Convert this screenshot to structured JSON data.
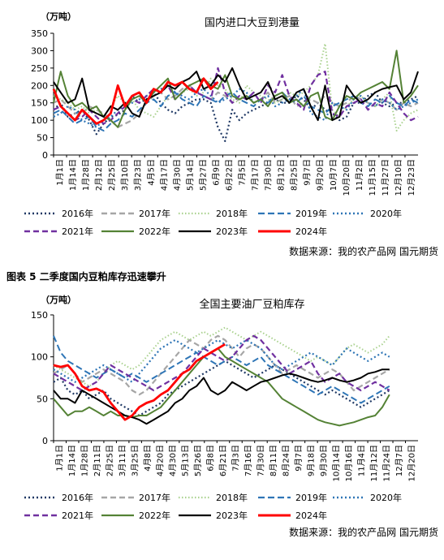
{
  "section_title": "图表 5 二季度国内豆粕库存迅速攀升",
  "legend_colors": {
    "2016年": "#1f3864",
    "2017年": "#a6a6a6",
    "2018年": "#a9d18e",
    "2019年": "#2e75b6",
    "2020年": "#2e75b6",
    "2021年": "#7030a0",
    "2022年": "#548235",
    "2023年": "#000000",
    "2024年": "#ff0000"
  },
  "chart_data": [
    {
      "type": "line",
      "title": "国内进口大豆到港量",
      "unit": "（万吨）",
      "source": "数据来源：我的农产品网 国元期货",
      "ylim": [
        0,
        350
      ],
      "yticks": [
        0,
        50,
        100,
        150,
        200,
        250,
        300,
        350
      ],
      "x_labels": [
        "1月1日",
        "1月14日",
        "1月28日",
        "2月12日",
        "2月25日",
        "3月10日",
        "3月23日",
        "4月5日",
        "4月17日",
        "4月30日",
        "5月14日",
        "5月27日",
        "6月9日",
        "6月22日",
        "7月5日",
        "7月17日",
        "7月30日",
        "8月12日",
        "8月25日",
        "9月7日",
        "9月20日",
        "10月7日",
        "10月20日",
        "11月2日",
        "11月15日",
        "11月27日",
        "12月10日",
        "12月23日"
      ],
      "series": [
        {
          "name": "2016年",
          "values": [
            130,
            150,
            110,
            120,
            130,
            100,
            60,
            90,
            110,
            115,
            130,
            170,
            150,
            160,
            180,
            150,
            130,
            120,
            140,
            150,
            160,
            160,
            150,
            80,
            40,
            130,
            100,
            120,
            130,
            140,
            150,
            160,
            150,
            150,
            170,
            160,
            130,
            150,
            130,
            120,
            100,
            110,
            150,
            150,
            170,
            180,
            150,
            140,
            150,
            150,
            160,
            170
          ]
        },
        {
          "name": "2017年",
          "values": [
            150,
            160,
            140,
            120,
            120,
            140,
            130,
            120,
            100,
            80,
            90,
            100,
            120,
            150,
            170,
            180,
            160,
            170,
            190,
            200,
            180,
            170,
            160,
            180,
            170,
            150,
            160,
            170,
            150,
            160,
            180,
            150,
            160,
            170,
            140,
            150,
            160,
            150,
            170,
            150,
            140,
            150,
            170,
            160,
            150,
            140,
            160,
            150,
            130,
            150,
            140,
            150
          ]
        },
        {
          "name": "2018年",
          "values": [
            170,
            160,
            150,
            130,
            140,
            120,
            130,
            110,
            140,
            170,
            150,
            160,
            130,
            120,
            110,
            140,
            170,
            160,
            180,
            190,
            170,
            180,
            220,
            200,
            190,
            160,
            150,
            200,
            180,
            170,
            160,
            150,
            160,
            180,
            170,
            180,
            200,
            230,
            320,
            130,
            110,
            140,
            160,
            170,
            150,
            140,
            160,
            180,
            70,
            100,
            120,
            130
          ]
        },
        {
          "name": "2019年",
          "values": [
            120,
            130,
            110,
            90,
            100,
            110,
            80,
            70,
            90,
            100,
            120,
            110,
            130,
            150,
            160,
            140,
            170,
            180,
            160,
            150,
            140,
            170,
            160,
            150,
            170,
            180,
            160,
            150,
            140,
            160,
            150,
            170,
            180,
            160,
            150,
            170,
            140,
            130,
            120,
            140,
            150,
            160,
            170,
            150,
            140,
            160,
            150,
            170,
            150,
            140,
            160,
            150
          ]
        },
        {
          "name": "2020年",
          "values": [
            110,
            120,
            140,
            130,
            100,
            90,
            80,
            100,
            110,
            130,
            140,
            150,
            160,
            170,
            180,
            190,
            200,
            180,
            170,
            160,
            180,
            190,
            170,
            150,
            160,
            170,
            190,
            180,
            150,
            160,
            170,
            140,
            150,
            160,
            170,
            190,
            120,
            110,
            100,
            150,
            140,
            130,
            160,
            170,
            150,
            140,
            160,
            150,
            130,
            140,
            150,
            160
          ]
        },
        {
          "name": "2021年",
          "values": [
            130,
            140,
            120,
            100,
            110,
            130,
            110,
            90,
            100,
            120,
            140,
            160,
            150,
            170,
            190,
            180,
            200,
            160,
            180,
            200,
            180,
            170,
            160,
            250,
            180,
            150,
            170,
            160,
            180,
            150,
            200,
            180,
            230,
            170,
            150,
            130,
            200,
            230,
            240,
            120,
            110,
            140,
            150,
            160,
            130,
            150,
            140,
            180,
            150,
            120,
            100,
            110
          ]
        },
        {
          "name": "2022年",
          "values": [
            150,
            240,
            170,
            140,
            150,
            130,
            140,
            110,
            100,
            80,
            130,
            160,
            170,
            150,
            180,
            200,
            220,
            160,
            180,
            200,
            210,
            220,
            200,
            190,
            230,
            170,
            160,
            170,
            150,
            160,
            140,
            170,
            180,
            150,
            160,
            140,
            170,
            180,
            110,
            100,
            140,
            170,
            160,
            180,
            190,
            200,
            210,
            190,
            300,
            150,
            170,
            200
          ]
        },
        {
          "name": "2023年",
          "values": [
            210,
            180,
            150,
            160,
            220,
            130,
            120,
            110,
            140,
            130,
            150,
            120,
            110,
            160,
            170,
            180,
            200,
            190,
            210,
            220,
            240,
            190,
            200,
            230,
            210,
            250,
            200,
            160,
            170,
            180,
            210,
            160,
            170,
            150,
            180,
            190,
            140,
            100,
            200,
            100,
            110,
            200,
            170,
            150,
            160,
            180,
            190,
            195,
            200,
            160,
            180,
            240
          ]
        },
        {
          "name": "2024年",
          "values": [
            190,
            140,
            120,
            100,
            130,
            110,
            90,
            100,
            120,
            200,
            140,
            170,
            180,
            150,
            190,
            180,
            210,
            200,
            210,
            190,
            180,
            220,
            190,
            210
          ]
        }
      ]
    },
    {
      "type": "line",
      "title": "全国主要油厂豆粕库存",
      "unit": "（万吨）",
      "source": "数据来源：我的农产品网 国元期货",
      "ylim": [
        0,
        150
      ],
      "yticks": [
        0,
        50,
        100,
        150
      ],
      "x_labels": [
        "1月1日",
        "1月14日",
        "1月28日",
        "2月11日",
        "2月25日",
        "3月11日",
        "3月25日",
        "4月8日",
        "4月20日",
        "4月30日",
        "5月13日",
        "5月26日",
        "6月8日",
        "6月21日",
        "7月3日",
        "7月16日",
        "7月30日",
        "8月11日",
        "8月24日",
        "9月7日",
        "9月18日",
        "9月30日",
        "10月14日",
        "10月16日",
        "11月4日",
        "11月12日",
        "11月24日",
        "12月7日",
        "12月20日"
      ],
      "series": [
        {
          "name": "2016年",
          "values": [
            70,
            75,
            60,
            55,
            60,
            50,
            55,
            60,
            50,
            45,
            40,
            35,
            30,
            35,
            40,
            45,
            55,
            60,
            65,
            70,
            75,
            80,
            85,
            90,
            95,
            90,
            85,
            80,
            75,
            80,
            85,
            90,
            85,
            80,
            75,
            70,
            65,
            60,
            55,
            60,
            55,
            50,
            45,
            40,
            45,
            50,
            55,
            60
          ]
        },
        {
          "name": "2017年",
          "values": [
            80,
            85,
            90,
            80,
            70,
            75,
            80,
            85,
            80,
            75,
            70,
            60,
            55,
            60,
            70,
            80,
            90,
            100,
            110,
            120,
            115,
            110,
            120,
            125,
            120,
            110,
            100,
            110,
            115,
            110,
            100,
            90,
            80,
            85,
            90,
            85,
            80,
            75,
            80,
            85,
            80,
            70,
            60,
            65,
            70,
            75,
            80,
            85
          ]
        },
        {
          "name": "2018年",
          "values": [
            90,
            85,
            80,
            75,
            70,
            65,
            70,
            80,
            90,
            95,
            90,
            85,
            90,
            100,
            110,
            120,
            125,
            130,
            125,
            120,
            125,
            130,
            125,
            130,
            135,
            130,
            125,
            120,
            125,
            130,
            125,
            120,
            115,
            110,
            105,
            100,
            95,
            100,
            95,
            90,
            100,
            110,
            115,
            110,
            105,
            110,
            115,
            125
          ]
        },
        {
          "name": "2019年",
          "values": [
            125,
            105,
            95,
            90,
            85,
            80,
            75,
            80,
            85,
            80,
            75,
            80,
            75,
            70,
            75,
            80,
            85,
            90,
            95,
            100,
            105,
            100,
            95,
            90,
            95,
            100,
            95,
            90,
            95,
            100,
            90,
            85,
            80,
            75,
            70,
            65,
            60,
            55,
            60,
            65,
            60,
            55,
            50,
            45,
            50,
            55,
            60,
            65
          ]
        },
        {
          "name": "2020年",
          "values": [
            85,
            80,
            75,
            70,
            75,
            80,
            85,
            90,
            85,
            80,
            75,
            70,
            80,
            90,
            100,
            110,
            115,
            120,
            115,
            110,
            105,
            110,
            115,
            120,
            115,
            110,
            115,
            120,
            115,
            110,
            100,
            90,
            85,
            90,
            95,
            100,
            105,
            100,
            95,
            90,
            100,
            110,
            105,
            100,
            95,
            100,
            105,
            100
          ]
        },
        {
          "name": "2021年",
          "values": [
            80,
            75,
            70,
            65,
            60,
            65,
            70,
            80,
            90,
            85,
            80,
            75,
            70,
            65,
            60,
            65,
            70,
            75,
            80,
            90,
            100,
            110,
            105,
            100,
            95,
            100,
            110,
            120,
            125,
            120,
            110,
            100,
            90,
            80,
            85,
            90,
            95,
            80,
            70,
            75,
            80,
            70,
            65,
            60,
            65,
            70,
            65,
            60
          ]
        },
        {
          "name": "2022年",
          "values": [
            50,
            40,
            30,
            35,
            35,
            40,
            35,
            30,
            35,
            30,
            30,
            28,
            30,
            30,
            35,
            40,
            50,
            60,
            70,
            80,
            90,
            100,
            105,
            110,
            100,
            95,
            90,
            85,
            80,
            75,
            70,
            60,
            50,
            45,
            40,
            35,
            30,
            25,
            22,
            20,
            18,
            20,
            22,
            25,
            28,
            30,
            40,
            55
          ]
        },
        {
          "name": "2023年",
          "values": [
            60,
            50,
            50,
            45,
            60,
            55,
            50,
            45,
            40,
            35,
            30,
            28,
            25,
            20,
            25,
            30,
            35,
            45,
            50,
            60,
            65,
            75,
            60,
            55,
            60,
            70,
            65,
            60,
            65,
            70,
            72,
            75,
            78,
            80,
            78,
            75,
            72,
            70,
            72,
            75,
            72,
            70,
            72,
            75,
            80,
            82,
            85,
            85
          ]
        },
        {
          "name": "2024年",
          "values": [
            90,
            88,
            90,
            80,
            65,
            60,
            62,
            58,
            45,
            35,
            25,
            30,
            40,
            45,
            48,
            55,
            60,
            70,
            80,
            85,
            95,
            100,
            105,
            110,
            115
          ]
        }
      ]
    }
  ]
}
